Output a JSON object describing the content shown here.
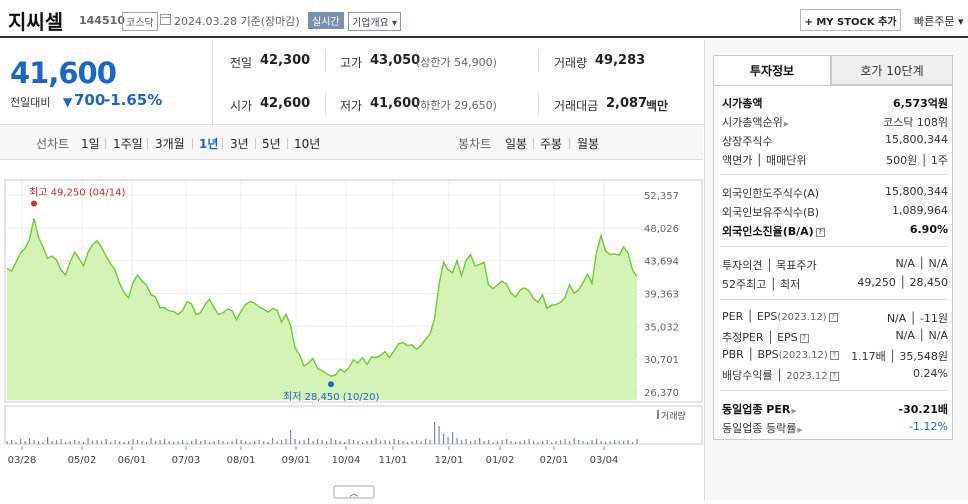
{
  "header": {
    "stock_name": "지씨셀",
    "stock_code": "144510",
    "market": "코스닥",
    "basis_date": "2024.03.28 기준(장마감)",
    "realtime_label": "실시간",
    "company_overview_label": "기업개요 ▾",
    "my_stock_label": "+ MY STOCK 추가",
    "quick_order_label": "빠른주문 ▾"
  },
  "summary": {
    "current_price": "41,600",
    "change_label": "전일대비",
    "change_value": "700",
    "change_percent": "-1.65%"
  },
  "stats": {
    "prev_close_label": "전일",
    "prev_close": "42,300",
    "high_label": "고가",
    "high": "43,050",
    "upper_limit": "(상한가 54,900)",
    "volume_label": "거래량",
    "volume": "49,283",
    "open_label": "시가",
    "open": "42,600",
    "low_label": "저가",
    "low": "41,600",
    "lower_limit": "(하한가 29,650)",
    "trade_value_label": "거래대금",
    "trade_value": "2,087",
    "trade_value_unit": "백만"
  },
  "period_bar": {
    "line_chart_label": "선차트",
    "line_periods": [
      "1일",
      "1주일",
      "3개월",
      "1년",
      "3년",
      "5년",
      "10년"
    ],
    "active_period": "1년",
    "candle_chart_label": "봉차트",
    "candle_periods": [
      "일봉",
      "주봉",
      "월봉"
    ]
  },
  "chart": {
    "y_ticks": [
      "52,357",
      "48,026",
      "43,694",
      "39,363",
      "35,032",
      "30,701",
      "26,370"
    ],
    "x_ticks": [
      "03/28",
      "05/02",
      "06/01",
      "07/03",
      "08/01",
      "09/01",
      "10/04",
      "11/01",
      "12/01",
      "01/02",
      "02/01",
      "03/04"
    ],
    "high_label": "최고 49,250 (04/14)",
    "low_label": "최저 28,450 (10/20)",
    "volume_legend": "거래량"
  },
  "chart_data": {
    "type": "area",
    "title": "",
    "ylim": [
      26370,
      52357
    ],
    "x_ticks": [
      "03/28",
      "05/02",
      "06/01",
      "07/03",
      "08/01",
      "09/01",
      "10/04",
      "11/01",
      "12/01",
      "01/02",
      "02/01",
      "03/04"
    ],
    "series": [
      {
        "values": [
          42700,
          42300,
          43500,
          44700,
          45300,
          46500,
          49250,
          46800,
          45500,
          44000,
          44300,
          43800,
          42500,
          41800,
          43500,
          44800,
          44000,
          43000,
          44800,
          45800,
          46300,
          45500,
          44300,
          43300,
          42500,
          40700,
          39500,
          38800,
          40800,
          41800,
          41000,
          40500,
          39200,
          38900,
          37500,
          37500,
          37100,
          37000,
          36600,
          37100,
          38300,
          38000,
          36600,
          36800,
          37900,
          38600,
          37500,
          36600,
          36800,
          37300,
          37100,
          35900,
          37000,
          37900,
          38300,
          38100,
          37600,
          37300,
          36900,
          37400,
          37200,
          35600,
          36600,
          35200,
          32200,
          31300,
          29800,
          30200,
          30800,
          29500,
          29200,
          28800,
          28450,
          28600,
          29400,
          29000,
          29600,
          30600,
          30200,
          30900,
          30000,
          31000,
          30900,
          31200,
          31700,
          30900,
          31800,
          32700,
          32900,
          32500,
          32600,
          32000,
          32500,
          33300,
          34000,
          36000,
          40500,
          43500,
          42500,
          42100,
          43700,
          41700,
          43700,
          44500,
          43000,
          43200,
          43500,
          40500,
          40000,
          40500,
          41000,
          40600,
          39400,
          38900,
          39800,
          40100,
          39700,
          38700,
          38200,
          39200,
          37400,
          37800,
          37900,
          38200,
          38800,
          40500,
          39400,
          39800,
          40800,
          41900,
          40700,
          44800,
          47000,
          45000,
          44500,
          44600,
          44400,
          45500,
          44700,
          42500,
          41600
        ]
      }
    ],
    "annotations": [
      {
        "text": "최고 49,250 (04/14)",
        "date": "04/14",
        "value": 49250
      },
      {
        "text": "최저 28,450 (10/20)",
        "date": "10/20",
        "value": 28450
      }
    ],
    "legend": "거래량"
  },
  "right_panel": {
    "tabs": [
      "투자정보",
      "호가 10단계"
    ],
    "market_cap_label": "시가총액",
    "market_cap": "6,573억원",
    "market_cap_rank_label": "시가총액순위",
    "market_cap_rank": "코스닥 108위",
    "shares_label": "상장주식수",
    "shares": "15,800,344",
    "par_label": "액면가 │ 매매단위",
    "par": "500원 │ 1주",
    "foreign_limit_label": "외국인한도주식수(A)",
    "foreign_limit": "15,800,344",
    "foreign_hold_label": "외국인보유주식수(B)",
    "foreign_hold": "1,089,964",
    "foreign_ratio_label": "외국인소진율(B/A)",
    "foreign_ratio": "6.90%",
    "opinion_label": "투자의견 │ 목표주가",
    "opinion": "N/A │ N/A",
    "week52_label": "52주최고 │ 최저",
    "week52": "49,250 │ 28,450",
    "per_label": "PER │ EPS",
    "per_sub": "(2023.12)",
    "per": "N/A │ -11원",
    "est_per_label": "추정PER │ EPS",
    "est_per": "N/A │ N/A",
    "pbr_label": "PBR │ BPS",
    "pbr_sub": "(2023.12)",
    "pbr": "1.17배 │ 35,548원",
    "dividend_label": "배당수익률 │",
    "dividend_sub": "2023.12",
    "dividend": "0.24%",
    "industry_per_label": "동일업종 PER",
    "industry_per": "-30.21배",
    "industry_change_label": "동일업종 등락률",
    "industry_change": "-1.12%"
  },
  "colors": {
    "up": "#e0271f",
    "down": "#1a66cc",
    "area_fill": "#d4f3b6",
    "area_line": "#6ccf2e"
  }
}
